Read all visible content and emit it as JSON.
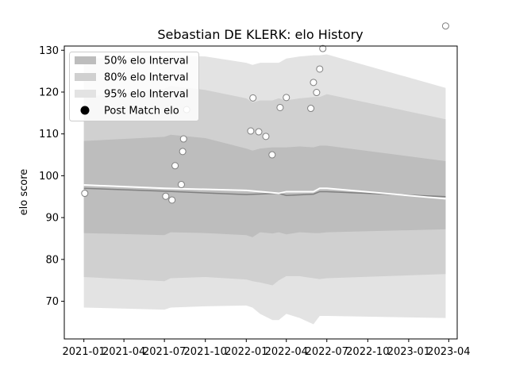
{
  "chart_data": {
    "type": "scatter",
    "title": "Sebastian DE KLERK: elo History",
    "xlabel": "",
    "ylabel": "elo score",
    "xlim": [
      "2020-11-18",
      "2023-04-20"
    ],
    "ylim": [
      61,
      131
    ],
    "y_ticks": [
      70,
      80,
      90,
      100,
      110,
      120,
      130
    ],
    "x_ticks": [
      {
        "date": "2021-01-01",
        "label": "2021-01"
      },
      {
        "date": "2021-04-01",
        "label": "2021-04"
      },
      {
        "date": "2021-07-01",
        "label": "2021-07"
      },
      {
        "date": "2021-10-01",
        "label": "2021-10"
      },
      {
        "date": "2022-01-01",
        "label": "2022-01"
      },
      {
        "date": "2022-04-01",
        "label": "2022-04"
      },
      {
        "date": "2022-07-01",
        "label": "2022-07"
      },
      {
        "date": "2022-10-01",
        "label": "2022-10"
      },
      {
        "date": "2023-01-01",
        "label": "2023-01"
      },
      {
        "date": "2023-04-01",
        "label": "2023-04"
      }
    ],
    "legend_position": "top-left",
    "grid": false,
    "legend": [
      {
        "label": "50% elo Interval",
        "kind": "band",
        "color": "#bdbdbd"
      },
      {
        "label": "80% elo Interval",
        "kind": "band",
        "color": "#d0d0d0"
      },
      {
        "label": "95% elo Interval",
        "kind": "band",
        "color": "#e3e3e3"
      },
      {
        "label": "Post Match elo",
        "kind": "marker",
        "color": "#000000"
      }
    ],
    "colors": {
      "band50": "#bdbdbd",
      "band80": "#d0d0d0",
      "band95": "#e3e3e3",
      "mean_line": "#808080",
      "post_line": "#ffffff",
      "marker_fill": "#ffffff",
      "marker_edge": "#7f7f7f"
    },
    "bands": {
      "dates": [
        "2021-01-01",
        "2021-07-01",
        "2021-07-15",
        "2021-10-01",
        "2022-01-01",
        "2022-01-15",
        "2022-02-01",
        "2022-03-01",
        "2022-03-15",
        "2022-04-01",
        "2022-05-01",
        "2022-06-01",
        "2022-06-15",
        "2022-07-01",
        "2023-03-25"
      ],
      "lo95": [
        68.5,
        68.0,
        68.5,
        68.8,
        69.0,
        68.5,
        67.0,
        65.5,
        65.5,
        67.0,
        66.0,
        64.5,
        66.5,
        66.5,
        66.0
      ],
      "lo80": [
        75.8,
        74.8,
        75.5,
        75.8,
        75.2,
        74.8,
        74.5,
        73.8,
        75.0,
        76.0,
        76.0,
        75.5,
        75.3,
        75.5,
        76.5
      ],
      "lo50": [
        86.3,
        85.8,
        86.5,
        86.3,
        85.8,
        85.3,
        86.5,
        86.2,
        86.5,
        86.0,
        86.5,
        86.3,
        86.3,
        86.5,
        87.2
      ],
      "hi50": [
        108.3,
        109.3,
        109.8,
        109.0,
        106.5,
        106.0,
        106.5,
        106.8,
        106.8,
        106.8,
        107.0,
        106.8,
        107.2,
        107.2,
        103.5
      ],
      "hi80": [
        118.8,
        120.8,
        121.5,
        120.5,
        118.5,
        117.5,
        118.0,
        118.0,
        118.5,
        118.0,
        118.5,
        118.8,
        118.8,
        119.5,
        113.5
      ],
      "hi95": [
        128.0,
        128.5,
        128.8,
        128.5,
        127.0,
        126.5,
        127.0,
        127.0,
        127.0,
        128.0,
        128.5,
        128.8,
        128.8,
        129.0,
        121.0
      ]
    },
    "mean_line": {
      "dates": [
        "2021-01-01",
        "2021-07-01",
        "2022-01-01",
        "2022-03-15",
        "2022-04-01",
        "2022-06-01",
        "2022-06-15",
        "2022-07-01",
        "2023-03-25"
      ],
      "values": [
        97.0,
        96.3,
        95.5,
        95.8,
        95.3,
        95.6,
        96.2,
        96.2,
        95.0
      ]
    },
    "post_match_line": {
      "dates": [
        "2021-01-01",
        "2021-07-01",
        "2022-01-01",
        "2022-03-15",
        "2022-04-01",
        "2022-06-01",
        "2022-06-15",
        "2022-07-01",
        "2023-03-25"
      ],
      "values": [
        97.8,
        97.0,
        96.5,
        95.8,
        96.2,
        96.2,
        97.0,
        97.0,
        94.5
      ]
    },
    "post_match_elo": [
      {
        "date": "2021-01-03",
        "elo": 95.8
      },
      {
        "date": "2021-07-04",
        "elo": 95.1
      },
      {
        "date": "2021-07-18",
        "elo": 94.2
      },
      {
        "date": "2021-07-25",
        "elo": 102.4
      },
      {
        "date": "2021-08-08",
        "elo": 97.9
      },
      {
        "date": "2021-08-11",
        "elo": 105.8
      },
      {
        "date": "2021-08-13",
        "elo": 108.8
      },
      {
        "date": "2021-08-20",
        "elo": 115.8
      },
      {
        "date": "2022-01-11",
        "elo": 110.7
      },
      {
        "date": "2022-01-16",
        "elo": 118.6
      },
      {
        "date": "2022-01-29",
        "elo": 110.5
      },
      {
        "date": "2022-02-14",
        "elo": 109.4
      },
      {
        "date": "2022-02-28",
        "elo": 105.0
      },
      {
        "date": "2022-03-18",
        "elo": 116.3
      },
      {
        "date": "2022-04-01",
        "elo": 118.7
      },
      {
        "date": "2022-05-26",
        "elo": 116.1
      },
      {
        "date": "2022-06-01",
        "elo": 122.3
      },
      {
        "date": "2022-06-08",
        "elo": 119.9
      },
      {
        "date": "2022-06-15",
        "elo": 125.5
      },
      {
        "date": "2022-06-22",
        "elo": 130.4
      },
      {
        "date": "2023-03-25",
        "elo": 135.8
      }
    ]
  }
}
